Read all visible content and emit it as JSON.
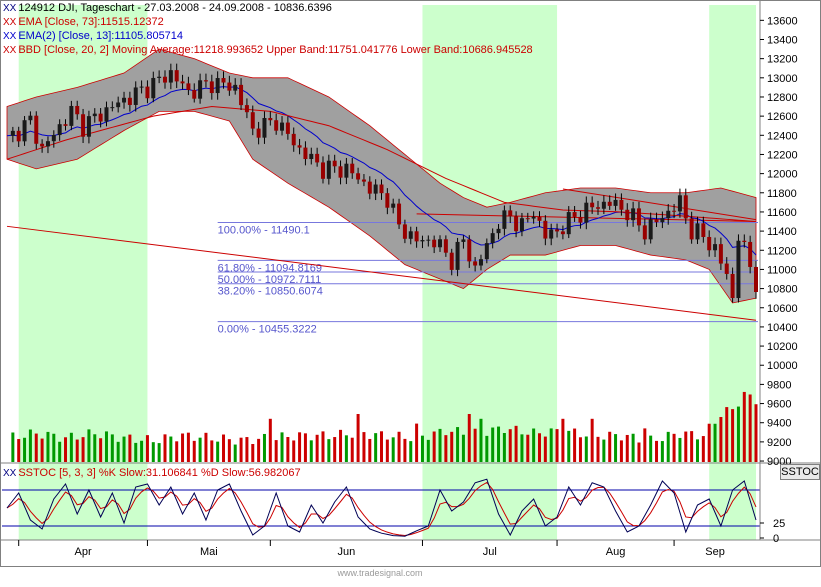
{
  "header": {
    "line1": "124912  DJI, Tageschart - 27.03.2008 - 24.09.2008 - 10836.6396",
    "line2": "EMA [Close, 73]:11515.12372",
    "line3": "EMA(2) [Close, 13]:11105.805714",
    "line4": "BBD [Close, 20, 2] Moving Average:11218.993652 Upper Band:11751.041776 Lower Band:10686.945528",
    "x_mark": "XX"
  },
  "osc_header": "SSTOC [5, 3, 3] %K Slow:31.106841 %D Slow:56.982067",
  "osc_button": "SSTOC",
  "watermark": "www.tradesignal.com",
  "colors": {
    "background": "#ffffff",
    "green_band": "#ccffcc",
    "bollinger_fill": "#a0a0a0",
    "candle_up": "#1a1a1a",
    "candle_down": "#990000",
    "ema73": "#cc0000",
    "ema13": "#0000cc",
    "volume_up": "#009900",
    "volume_down": "#cc0000",
    "fib_line": "#7777dd",
    "fib_text": "#5555cc",
    "trend_line": "#cc0000",
    "stoch_k": "#000055",
    "stoch_d": "#cc0000",
    "stoch_levels": "#0000aa"
  },
  "chart_data": {
    "type": "candlestick",
    "title": "124912  DJI, Tageschart - 27.03.2008 - 24.09.2008 - 10836.6396",
    "x_months": [
      "Apr",
      "Mai",
      "Jun",
      "Jul",
      "Aug",
      "Sep"
    ],
    "price_axis_ticks": [
      13600,
      13400,
      13200,
      13000,
      12800,
      12600,
      12400,
      12200,
      12000,
      11800,
      11600,
      11400,
      11200,
      11000,
      10800,
      10600,
      10400,
      10200,
      10000,
      9800,
      9600,
      9400,
      9200,
      9000
    ],
    "y_range": [
      8990,
      13760
    ],
    "osc_axis_ticks": [
      25,
      0
    ],
    "x_range": [
      0,
      128
    ],
    "green_bands": [
      [
        2,
        24
      ],
      [
        71,
        94
      ],
      [
        120,
        128
      ]
    ],
    "anchors": [
      [
        0,
        12350
      ],
      [
        4,
        12550
      ],
      [
        6,
        12250
      ],
      [
        11,
        12650
      ],
      [
        13,
        12500
      ],
      [
        18,
        12700
      ],
      [
        24,
        12900
      ],
      [
        28,
        13050
      ],
      [
        31,
        12850
      ],
      [
        35,
        12950
      ],
      [
        39,
        12900
      ],
      [
        42,
        12450
      ],
      [
        46,
        12550
      ],
      [
        50,
        12250
      ],
      [
        54,
        12050
      ],
      [
        58,
        12050
      ],
      [
        62,
        11850
      ],
      [
        65,
        11750
      ],
      [
        67,
        11450
      ],
      [
        70,
        11300
      ],
      [
        73,
        11300
      ],
      [
        76,
        11100
      ],
      [
        78,
        11300
      ],
      [
        80,
        11000
      ],
      [
        84,
        11500
      ],
      [
        86,
        11550
      ],
      [
        88,
        11450
      ],
      [
        90,
        11600
      ],
      [
        92,
        11350
      ],
      [
        94,
        11400
      ],
      [
        97,
        11550
      ],
      [
        100,
        11650
      ],
      [
        103,
        11700
      ],
      [
        106,
        11600
      ],
      [
        109,
        11400
      ],
      [
        112,
        11550
      ],
      [
        115,
        11700
      ],
      [
        117,
        11400
      ],
      [
        119,
        11350
      ],
      [
        121,
        11200
      ],
      [
        123,
        10950
      ],
      [
        124,
        10700
      ],
      [
        125,
        11350
      ],
      [
        127,
        11050
      ],
      [
        128,
        10850
      ]
    ],
    "volume_anchors": [
      [
        0,
        10
      ],
      [
        5,
        12
      ],
      [
        10,
        10
      ],
      [
        15,
        12
      ],
      [
        20,
        10
      ],
      [
        25,
        9
      ],
      [
        30,
        11
      ],
      [
        35,
        10
      ],
      [
        40,
        9
      ],
      [
        45,
        10
      ],
      [
        50,
        11
      ],
      [
        55,
        11
      ],
      [
        60,
        12
      ],
      [
        65,
        11
      ],
      [
        70,
        10
      ],
      [
        75,
        13
      ],
      [
        80,
        12
      ],
      [
        85,
        14
      ],
      [
        90,
        12
      ],
      [
        95,
        13
      ],
      [
        100,
        11
      ],
      [
        105,
        11
      ],
      [
        110,
        9
      ],
      [
        115,
        12
      ],
      [
        119,
        11
      ],
      [
        122,
        20
      ],
      [
        124,
        22
      ],
      [
        126,
        28
      ],
      [
        128,
        26
      ]
    ],
    "volume_spikes": [
      [
        45,
        18
      ],
      [
        60,
        20
      ],
      [
        70,
        16
      ],
      [
        79,
        20
      ],
      [
        81,
        18
      ],
      [
        95,
        18
      ],
      [
        100,
        18
      ],
      [
        109,
        14
      ]
    ],
    "stoch_anchors": [
      [
        0,
        50
      ],
      [
        2,
        75
      ],
      [
        4,
        30
      ],
      [
        6,
        15
      ],
      [
        8,
        65
      ],
      [
        10,
        90
      ],
      [
        12,
        40
      ],
      [
        14,
        80
      ],
      [
        16,
        35
      ],
      [
        18,
        75
      ],
      [
        20,
        25
      ],
      [
        22,
        85
      ],
      [
        24,
        90
      ],
      [
        26,
        55
      ],
      [
        28,
        85
      ],
      [
        30,
        40
      ],
      [
        32,
        75
      ],
      [
        34,
        30
      ],
      [
        36,
        80
      ],
      [
        38,
        90
      ],
      [
        40,
        45
      ],
      [
        42,
        5
      ],
      [
        44,
        20
      ],
      [
        46,
        75
      ],
      [
        48,
        20
      ],
      [
        50,
        10
      ],
      [
        52,
        55
      ],
      [
        54,
        25
      ],
      [
        56,
        60
      ],
      [
        58,
        85
      ],
      [
        60,
        35
      ],
      [
        62,
        15
      ],
      [
        64,
        8
      ],
      [
        66,
        4
      ],
      [
        68,
        3
      ],
      [
        70,
        12
      ],
      [
        72,
        20
      ],
      [
        74,
        80
      ],
      [
        76,
        45
      ],
      [
        78,
        60
      ],
      [
        80,
        92
      ],
      [
        82,
        98
      ],
      [
        84,
        40
      ],
      [
        86,
        5
      ],
      [
        88,
        45
      ],
      [
        90,
        65
      ],
      [
        92,
        20
      ],
      [
        94,
        35
      ],
      [
        96,
        85
      ],
      [
        98,
        55
      ],
      [
        100,
        92
      ],
      [
        102,
        85
      ],
      [
        104,
        45
      ],
      [
        106,
        10
      ],
      [
        108,
        20
      ],
      [
        110,
        55
      ],
      [
        112,
        95
      ],
      [
        114,
        75
      ],
      [
        116,
        10
      ],
      [
        118,
        55
      ],
      [
        120,
        65
      ],
      [
        122,
        20
      ],
      [
        124,
        80
      ],
      [
        126,
        95
      ],
      [
        128,
        30
      ]
    ],
    "ema73_anchors": [
      [
        0,
        12150
      ],
      [
        10,
        12350
      ],
      [
        25,
        12600
      ],
      [
        35,
        12700
      ],
      [
        45,
        12650
      ],
      [
        55,
        12500
      ],
      [
        65,
        12250
      ],
      [
        75,
        11950
      ],
      [
        85,
        11700
      ],
      [
        95,
        11620
      ],
      [
        105,
        11600
      ],
      [
        115,
        11560
      ],
      [
        128,
        11500
      ]
    ],
    "boll_up": [
      [
        0,
        12700
      ],
      [
        5,
        12800
      ],
      [
        12,
        12900
      ],
      [
        20,
        13050
      ],
      [
        26,
        13300
      ],
      [
        32,
        13200
      ],
      [
        38,
        13050
      ],
      [
        42,
        13000
      ],
      [
        48,
        13000
      ],
      [
        55,
        12800
      ],
      [
        62,
        12500
      ],
      [
        68,
        12200
      ],
      [
        74,
        11900
      ],
      [
        78,
        11750
      ],
      [
        82,
        11650
      ],
      [
        86,
        11700
      ],
      [
        92,
        11800
      ],
      [
        98,
        11850
      ],
      [
        104,
        11850
      ],
      [
        110,
        11800
      ],
      [
        116,
        11800
      ],
      [
        122,
        11850
      ],
      [
        128,
        11750
      ]
    ],
    "boll_low": [
      [
        0,
        12150
      ],
      [
        5,
        12050
      ],
      [
        12,
        12150
      ],
      [
        20,
        12450
      ],
      [
        26,
        12650
      ],
      [
        32,
        12650
      ],
      [
        38,
        12550
      ],
      [
        42,
        12150
      ],
      [
        48,
        11900
      ],
      [
        55,
        11650
      ],
      [
        62,
        11350
      ],
      [
        68,
        11050
      ],
      [
        74,
        10900
      ],
      [
        78,
        10800
      ],
      [
        82,
        11000
      ],
      [
        86,
        11150
      ],
      [
        92,
        11150
      ],
      [
        98,
        11250
      ],
      [
        104,
        11250
      ],
      [
        110,
        11150
      ],
      [
        116,
        11100
      ],
      [
        120,
        11000
      ],
      [
        124,
        10650
      ],
      [
        128,
        10700
      ]
    ],
    "fibs": [
      {
        "label": "100.00% - 11490.1",
        "value": 11490.1
      },
      {
        "label": "61.80% - 11094.8169",
        "value": 11094.8169
      },
      {
        "label": "50.00% - 10972.7111",
        "value": 10972.7111
      },
      {
        "label": "38.20% - 10850.6074",
        "value": 10850.6074
      },
      {
        "label": "0.00% - 10455.3222",
        "value": 10455.3222
      }
    ],
    "fib_x_start": 36,
    "trendlines": [
      [
        [
          0,
          11450
        ],
        [
          128,
          10470
        ]
      ],
      [
        [
          95,
          11840
        ],
        [
          128,
          11520
        ]
      ],
      [
        [
          70,
          11580
        ],
        [
          128,
          11500
        ]
      ]
    ]
  }
}
